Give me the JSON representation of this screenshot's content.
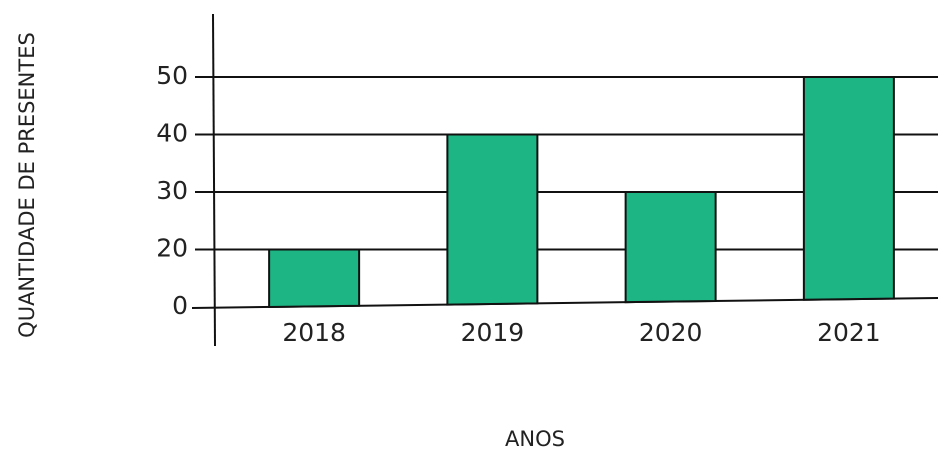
{
  "chart_data": {
    "type": "bar",
    "x_label": "ANOS",
    "y_label": "QUANTIDADE DE PRESENTES",
    "categories": [
      "2018",
      "2019",
      "2020",
      "2021"
    ],
    "values": [
      20,
      40,
      30,
      50
    ],
    "color": "#1db584",
    "ylim": [
      0,
      50
    ],
    "yticks": [
      0,
      20,
      30,
      40,
      50
    ],
    "grid": true
  }
}
